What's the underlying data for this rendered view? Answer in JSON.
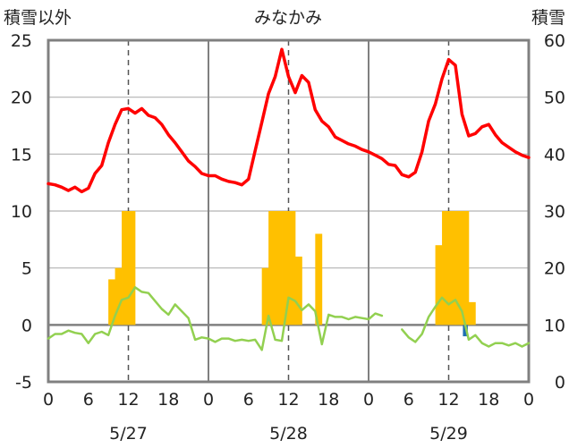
{
  "chart_data": {
    "type": "bar+line",
    "title": "みなかみ",
    "left_axis_title": "積雪以外",
    "right_axis_title": "積雪",
    "left_ylim": [
      -5,
      25
    ],
    "left_ticks": [
      "-5",
      "0",
      "5",
      "10",
      "15",
      "20",
      "25"
    ],
    "right_ylim": [
      0,
      60
    ],
    "right_ticks": [
      "0",
      "10",
      "20",
      "30",
      "40",
      "50",
      "60"
    ],
    "x_tick_labels": [
      "0",
      "6",
      "12",
      "18",
      "0",
      "6",
      "12",
      "18",
      "0",
      "6",
      "12",
      "18",
      "0"
    ],
    "date_labels": [
      "5/27",
      "5/28",
      "5/29"
    ],
    "colors": {
      "temperature": "#ff0000",
      "dewpoint": "#92d050",
      "precip_bar": "#ffc000",
      "snow_bar": "#1f6fb2",
      "axis": "#808080"
    },
    "temperature": [
      12.4,
      12.3,
      12.1,
      11.8,
      12.1,
      11.7,
      12.0,
      13.3,
      14.0,
      16.0,
      17.6,
      18.9,
      19.0,
      18.6,
      19.0,
      18.4,
      18.2,
      17.6,
      16.7,
      16.0,
      15.2,
      14.4,
      13.9,
      13.3,
      13.1,
      13.1,
      12.8,
      12.6,
      12.5,
      12.3,
      12.8,
      15.3,
      17.8,
      20.3,
      21.8,
      24.2,
      21.8,
      20.4,
      21.9,
      21.3,
      18.9,
      17.9,
      17.4,
      16.5,
      16.2,
      15.9,
      15.7,
      15.4,
      15.2,
      14.9,
      14.6,
      14.1,
      14.0,
      13.2,
      13.0,
      13.4,
      15.2,
      17.9,
      19.4,
      21.6,
      23.3,
      22.8,
      18.5,
      16.6,
      16.8,
      17.4,
      17.6,
      16.7,
      16.0,
      15.6,
      15.2,
      14.9,
      14.7
    ],
    "dewpoint": [
      -1.2,
      -0.8,
      -0.8,
      -0.5,
      -0.7,
      -0.8,
      -1.6,
      -0.8,
      -0.6,
      -0.9,
      0.8,
      2.2,
      2.4,
      3.3,
      2.9,
      2.8,
      2.1,
      1.4,
      0.9,
      1.8,
      1.2,
      0.6,
      -1.3,
      -1.1,
      -1.2,
      -1.5,
      -1.2,
      -1.2,
      -1.4,
      -1.3,
      -1.4,
      -1.3,
      -2.2,
      0.8,
      -1.3,
      -1.4,
      2.4,
      2.1,
      1.3,
      1.8,
      1.2,
      -1.7,
      0.9,
      0.7,
      0.7,
      0.5,
      0.7,
      0.6,
      0.5,
      1.0,
      0.8,
      null,
      null,
      -0.4,
      -1.1,
      -1.5,
      -0.8,
      0.7,
      1.6,
      2.4,
      1.8,
      2.2,
      1.2,
      -1.3,
      -0.9,
      -1.6,
      -1.9,
      -1.6,
      -1.6,
      -1.8,
      -1.6,
      -1.9,
      -1.6
    ],
    "precipitation": [
      0,
      0,
      0,
      0,
      0,
      0,
      0,
      0,
      0,
      4,
      5,
      10,
      10,
      0,
      0,
      0,
      0,
      0,
      0,
      0,
      0,
      0,
      0,
      0,
      0,
      0,
      0,
      0,
      0,
      0,
      0,
      0,
      5,
      10,
      10,
      10,
      10,
      6,
      0,
      0,
      8,
      0,
      0,
      0,
      0,
      0,
      0,
      0,
      0,
      0,
      0,
      0,
      0,
      0,
      0,
      0,
      0,
      0,
      7,
      10,
      10,
      10,
      10,
      2,
      0,
      0,
      0,
      0,
      0,
      0,
      0,
      0,
      0
    ],
    "snow_bars": [
      {
        "hour": 62,
        "value": -1.0
      }
    ]
  }
}
